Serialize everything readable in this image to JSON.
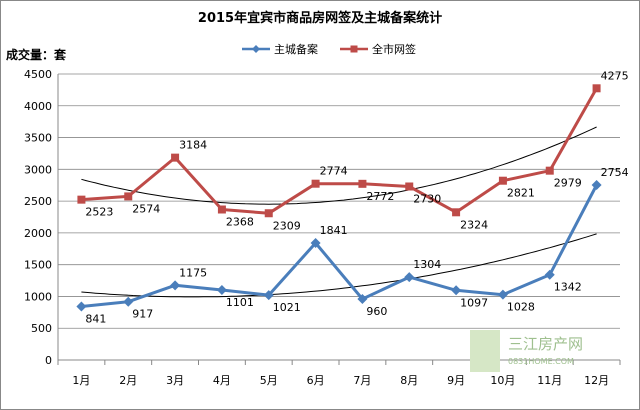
{
  "chart_data": {
    "type": "line",
    "title": "2015年宜宾市商品房网签及主城备案统计",
    "ylabel": "成交量：套",
    "xlabel": "",
    "categories": [
      "1月",
      "2月",
      "3月",
      "4月",
      "5月",
      "6月",
      "7月",
      "8月",
      "9月",
      "10月",
      "11月",
      "12月"
    ],
    "ylim": [
      0,
      4500
    ],
    "yticks": [
      0,
      500,
      1000,
      1500,
      2000,
      2500,
      3000,
      3500,
      4000,
      4500
    ],
    "grid": true,
    "legend_position": "top-right",
    "series": [
      {
        "name": "主城备案",
        "color": "#4a7ebb",
        "marker": "diamond",
        "values": [
          841,
          917,
          1175,
          1101,
          1021,
          1841,
          960,
          1304,
          1097,
          1028,
          1342,
          2754
        ],
        "trendline": "polynomial"
      },
      {
        "name": "全市网签",
        "color": "#be4b48",
        "marker": "square",
        "values": [
          2523,
          2574,
          3184,
          2368,
          2309,
          2774,
          2772,
          2730,
          2324,
          2821,
          2979,
          4275
        ],
        "trendline": "polynomial"
      }
    ]
  },
  "watermark": {
    "name": "三江房产网",
    "url": "0831HOME.COM"
  }
}
